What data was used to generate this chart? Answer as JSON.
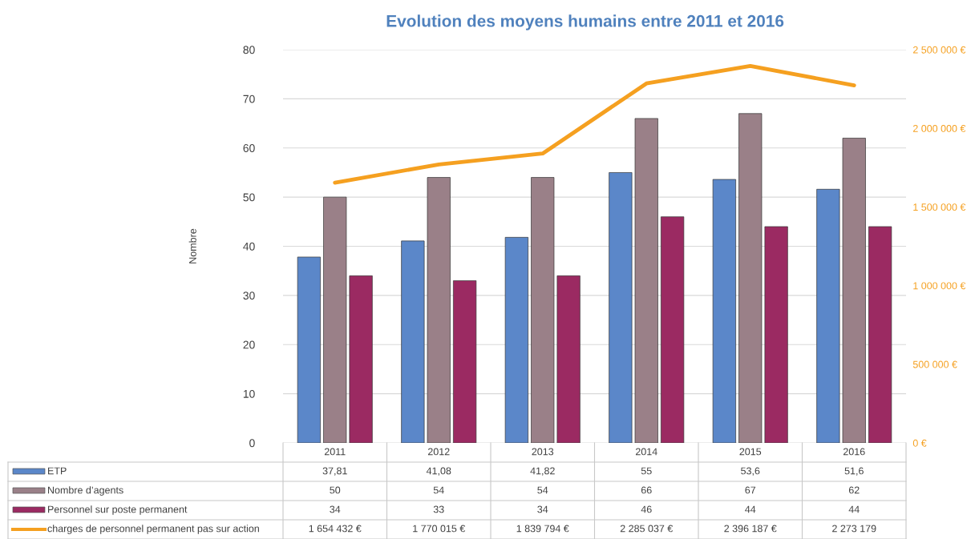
{
  "chart_data": {
    "type": "bar",
    "title": "Evolution des moyens humains entre 2011 et 2016",
    "ylabel": "Nombre",
    "categories": [
      "2011",
      "2012",
      "2013",
      "2014",
      "2015",
      "2016"
    ],
    "series": [
      {
        "name": "ETP",
        "color": "#5b87c9",
        "values": [
          37.81,
          41.08,
          41.82,
          55,
          53.6,
          51.6
        ],
        "value_labels": [
          "37,81",
          "41,08",
          "41,82",
          "55",
          "53,6",
          "51,6"
        ]
      },
      {
        "name": "Nombre d’agents",
        "color": "#9a8088",
        "values": [
          50,
          54,
          54,
          66,
          67,
          62
        ],
        "value_labels": [
          "50",
          "54",
          "54",
          "66",
          "67",
          "62"
        ]
      },
      {
        "name": "Personnel sur poste permanent",
        "color": "#9b2a62",
        "values": [
          34,
          33,
          34,
          46,
          44,
          44
        ],
        "value_labels": [
          "34",
          "33",
          "34",
          "46",
          "44",
          "44"
        ]
      },
      {
        "name": "charges de personnel permanent pas sur action",
        "color": "#f5a020",
        "type": "line",
        "axis": "y2",
        "values": [
          1654432,
          1770015,
          1839794,
          2285037,
          2396187,
          2273179
        ],
        "value_labels": [
          "1 654 432 €",
          "1 770 015 €",
          "1 839 794 €",
          "2 285 037 €",
          "2 396 187 €",
          "2 273 179"
        ]
      }
    ],
    "ylim": [
      0,
      80
    ],
    "yticks": [
      0,
      10,
      20,
      30,
      40,
      50,
      60,
      70,
      80
    ],
    "y2lim": [
      0,
      2500000
    ],
    "y2ticks": [
      {
        "value": 0,
        "label": "0 €"
      },
      {
        "value": 500000,
        "label": "500 000 €"
      },
      {
        "value": 1000000,
        "label": "1 000 000 €"
      },
      {
        "value": 1500000,
        "label": "1 500 000 €"
      },
      {
        "value": 2000000,
        "label": "2 000 000 €"
      },
      {
        "value": 2500000,
        "label": "2 500 000 €"
      }
    ],
    "grid": "y",
    "legend": "bottom"
  }
}
